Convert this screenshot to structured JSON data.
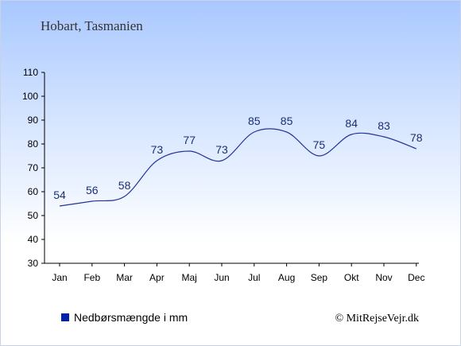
{
  "chart_data": {
    "type": "line",
    "title": "Hobart, Tasmanien",
    "categories": [
      "Jan",
      "Feb",
      "Mar",
      "Apr",
      "Maj",
      "Jun",
      "Jul",
      "Aug",
      "Sep",
      "Okt",
      "Nov",
      "Dec"
    ],
    "series": [
      {
        "name": "Nedbørsmængde i mm",
        "values": [
          54,
          56,
          58,
          73,
          77,
          73,
          85,
          85,
          75,
          84,
          83,
          78
        ],
        "color": "#2233a0"
      }
    ],
    "ylim": [
      30,
      110
    ],
    "yticks": [
      30,
      40,
      50,
      60,
      70,
      80,
      90,
      100,
      110
    ],
    "grid": false,
    "legend_position": "bottom-left",
    "legend_swatch_color": "#0022aa"
  },
  "credit": "© MitRejseVejr.dk"
}
